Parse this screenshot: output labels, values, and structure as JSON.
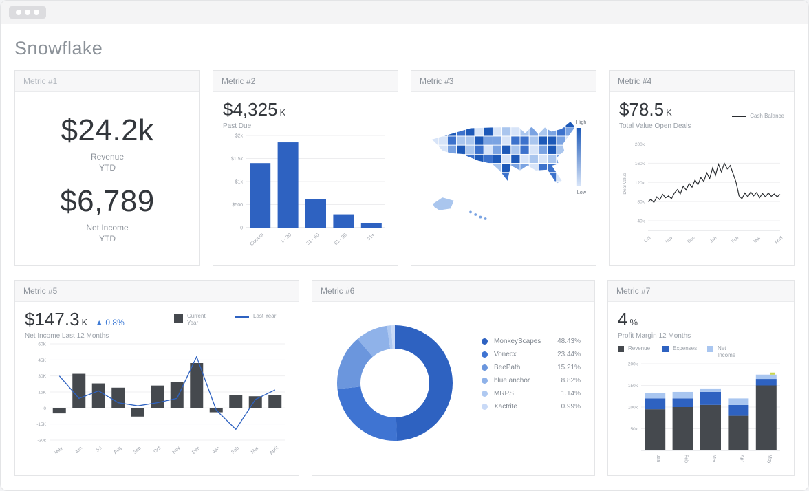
{
  "header": {
    "title": "Snowflake"
  },
  "accent_colors": {
    "primary_blue": "#2e62c1",
    "dark_bar": "#45494e",
    "light_blue": "#a9c6f0",
    "kpi_text": "#34383d",
    "muted_text": "#8f959d",
    "delta_blue": "#3e7bd6"
  },
  "cards": [
    {
      "title": "Metric #1",
      "stats": [
        {
          "value": "$24.2k",
          "label": "Revenue",
          "sublabel": "YTD"
        },
        {
          "value": "$6,789",
          "label": "Net Income",
          "sublabel": "YTD"
        }
      ]
    },
    {
      "title": "Metric #2",
      "kpi": {
        "value": "$4,325",
        "suffix": "K"
      },
      "label": "Past Due"
    },
    {
      "title": "Metric #3",
      "legend_high": "High",
      "legend_low": "Low"
    },
    {
      "title": "Metric #4",
      "kpi": {
        "value": "$78.5",
        "suffix": "K"
      },
      "label": "Total Value Open Deals"
    },
    {
      "title": "Metric #5",
      "kpi": {
        "value": "$147.3",
        "suffix": "K",
        "delta": "▲ 0.8%"
      },
      "label": "Net Income Last 12 Months"
    },
    {
      "title": "Metric #6"
    },
    {
      "title": "Metric #7",
      "kpi": {
        "value": "4",
        "suffix": "%"
      },
      "label": "Profit Margin 12 Months"
    }
  ],
  "chart_data": [
    {
      "card": "Metric #2",
      "type": "bar",
      "categories": [
        "Current",
        "1 - 30",
        "31 - 60",
        "61 - 90",
        "91+"
      ],
      "values": [
        1400,
        1850,
        620,
        290,
        90
      ],
      "bar_color": "#2e62c1",
      "yticks": [
        {
          "v": 2000,
          "label": "$2k"
        },
        {
          "v": 1500,
          "label": "$1.5k"
        },
        {
          "v": 1000,
          "label": "$1k"
        },
        {
          "v": 500,
          "label": "$500"
        },
        {
          "v": 0,
          "label": "0"
        }
      ],
      "ylim": [
        0,
        2000
      ]
    },
    {
      "card": "Metric #3",
      "type": "choropleth",
      "region": "United States",
      "legend": {
        "high": "High",
        "low": "Low"
      },
      "palette": [
        "#1d59b8",
        "#3c72cc",
        "#7aa3e2",
        "#aac6ee",
        "#d7e4f8"
      ]
    },
    {
      "card": "Metric #4",
      "type": "line",
      "ylabel": "Deal Value",
      "series": [
        {
          "name": "Cash Balance",
          "color": "#2a2d31",
          "values": [
            80,
            85,
            78,
            90,
            84,
            95,
            88,
            92,
            86,
            98,
            105,
            96,
            112,
            104,
            118,
            110,
            125,
            115,
            130,
            122,
            140,
            128,
            150,
            135,
            158,
            142,
            160,
            148,
            155,
            138,
            120,
            92,
            86,
            98,
            90,
            100,
            92,
            99,
            88,
            97,
            90,
            98,
            91,
            96,
            90,
            95
          ]
        }
      ],
      "xticks": [
        "Oct",
        "Nov",
        "Dec",
        "Jan",
        "Feb",
        "Mar",
        "April"
      ],
      "yticks": [
        {
          "v": 200,
          "label": "200k"
        },
        {
          "v": 160,
          "label": "160k"
        },
        {
          "v": 120,
          "label": "120k"
        },
        {
          "v": 80,
          "label": "80k"
        },
        {
          "v": 40,
          "label": "40k"
        }
      ],
      "ylim": [
        20,
        215
      ],
      "unit": "k"
    },
    {
      "card": "Metric #5",
      "type": "combo",
      "categories": [
        "May",
        "Jun",
        "Jul",
        "Aug",
        "Sep",
        "Oct",
        "Nov",
        "Dec",
        "Jan",
        "Feb",
        "Mar",
        "April"
      ],
      "bar": {
        "name": "Current Year",
        "color": "#45494e",
        "values": [
          -5,
          32,
          23,
          19,
          -8,
          21,
          24,
          42,
          -4,
          12,
          11,
          12
        ]
      },
      "line": {
        "name": "Last Year",
        "color": "#2e62c1",
        "values": [
          30,
          9,
          16,
          5,
          2,
          5,
          9,
          48,
          -2,
          -20,
          8,
          17
        ]
      },
      "yticks": [
        {
          "v": 60,
          "label": "60K"
        },
        {
          "v": 45,
          "label": "45K"
        },
        {
          "v": 30,
          "label": "30K"
        },
        {
          "v": 15,
          "label": "15K"
        },
        {
          "v": 0,
          "label": "0"
        },
        {
          "v": -15,
          "label": "-15K"
        },
        {
          "v": -30,
          "label": "-30k"
        }
      ],
      "ylim": [
        -30,
        60
      ],
      "unit": "K"
    },
    {
      "card": "Metric #6",
      "type": "pie",
      "labels": [
        "MonkeyScapes",
        "Vonecx",
        "BeePath",
        "blue anchor",
        "MRPS",
        "Xactrite"
      ],
      "values": [
        48.43,
        23.44,
        15.21,
        8.82,
        1.14,
        0.99
      ],
      "display": [
        "48.43%",
        "23.44%",
        "15.21%",
        "8.82%",
        "1.14%",
        "0.99%"
      ],
      "colors": [
        "#2e62c1",
        "#3f74d2",
        "#6b96dd",
        "#8fb2e9",
        "#afc9f1",
        "#c9daf7"
      ]
    },
    {
      "card": "Metric #7",
      "type": "stacked-bar",
      "categories": [
        "Jan",
        "Feb",
        "Mar",
        "Apr",
        "May"
      ],
      "series": [
        {
          "name": "Revenue",
          "color": "#45494e",
          "values": [
            95,
            100,
            105,
            80,
            150
          ]
        },
        {
          "name": "Expenses",
          "color": "#2e62c1",
          "values": [
            25,
            20,
            30,
            25,
            15
          ]
        },
        {
          "name": "Net Income",
          "color": "#a9c6f0",
          "values": [
            12,
            15,
            8,
            15,
            10
          ]
        }
      ],
      "marker": {
        "category": "May",
        "color": "#c9d64c"
      },
      "yticks": [
        {
          "v": 200,
          "label": "200k"
        },
        {
          "v": 150,
          "label": "150k"
        },
        {
          "v": 100,
          "label": "100k"
        },
        {
          "v": 50,
          "label": "50k"
        }
      ],
      "ylim": [
        0,
        200
      ],
      "unit": "k"
    }
  ]
}
